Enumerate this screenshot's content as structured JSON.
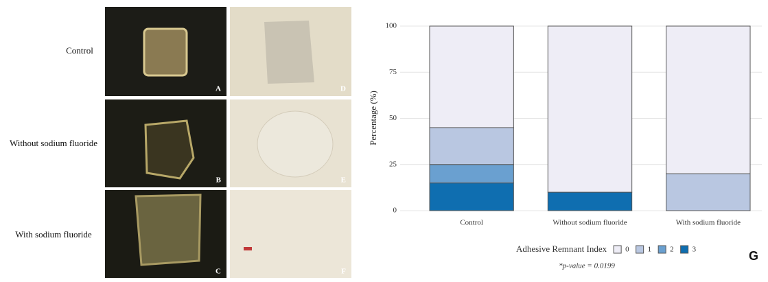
{
  "figure": {
    "row_labels": [
      "Control",
      "Without sodium fluoride",
      "With sodium fluoride"
    ],
    "panel_letters": [
      "A",
      "B",
      "C",
      "D",
      "E",
      "F"
    ],
    "chart_letter": "G"
  },
  "chart_data": {
    "type": "stacked_bar",
    "y_label": "Percentage (%)",
    "categories": [
      "Control",
      "Without sodium fluoride",
      "With sodium fluoride"
    ],
    "series": [
      {
        "name": "0",
        "color": "#eeedf6",
        "values": [
          55,
          90,
          80
        ]
      },
      {
        "name": "1",
        "color": "#b9c7e1",
        "values": [
          20,
          0,
          20
        ]
      },
      {
        "name": "2",
        "color": "#6aa0d0",
        "values": [
          10,
          0,
          0
        ]
      },
      {
        "name": "3",
        "color": "#0f6eb0",
        "values": [
          15,
          10,
          0
        ]
      }
    ],
    "legend_title": "Adhesive Remnant Index",
    "annotation": "*p-value = 0.0199",
    "ylim": [
      0,
      100
    ],
    "yticks": [
      0,
      25,
      50,
      75,
      100
    ],
    "grid": true
  }
}
